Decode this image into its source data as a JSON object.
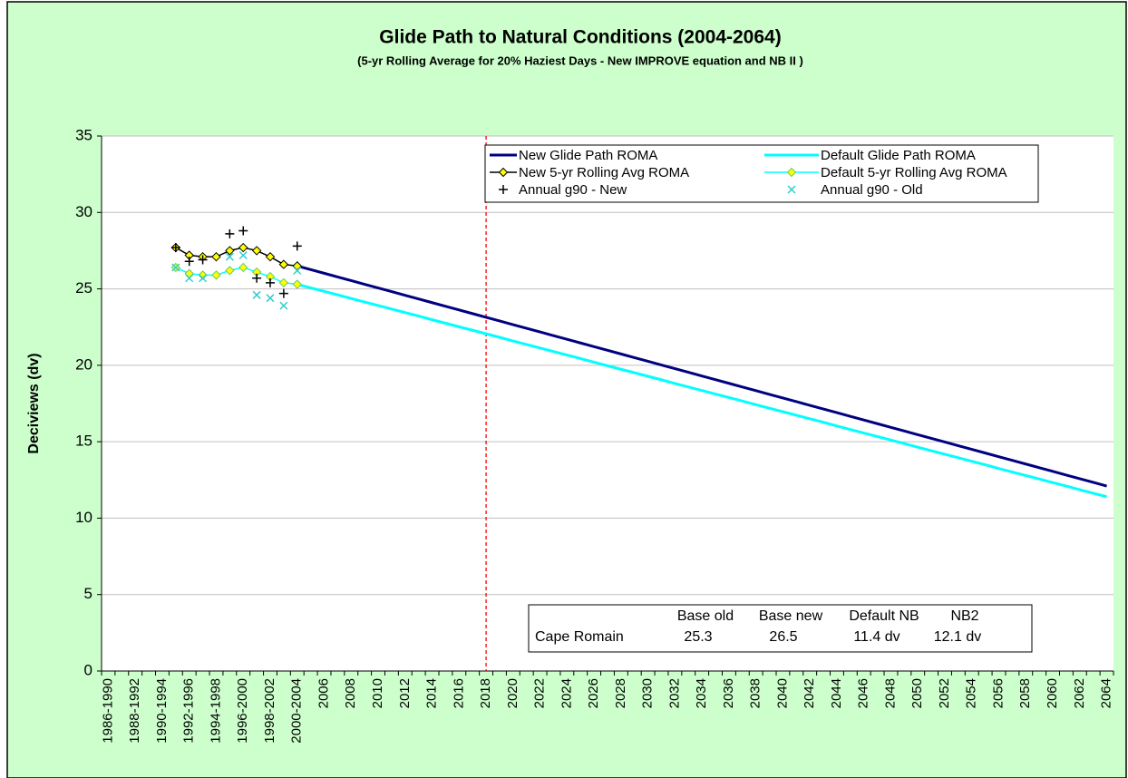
{
  "chart_data": {
    "type": "line",
    "title": "Glide Path to Natural Conditions  (2004-2064)",
    "subtitle": "(5-yr Rolling Average for 20% Haziest Days - New IMPROVE equation and NB II )",
    "y_label": "Deciviews (dv)",
    "categories": [
      "1986-1990",
      null,
      "1988-1992",
      null,
      "1990-1994",
      null,
      "1992-1996",
      null,
      "1994-1998",
      null,
      "1996-2000",
      null,
      "1998-2002",
      null,
      "2000-2004",
      null,
      "2006",
      null,
      "2008",
      null,
      "2010",
      null,
      "2012",
      null,
      "2014",
      null,
      "2016",
      null,
      "2018",
      null,
      "2020",
      null,
      "2022",
      null,
      "2024",
      null,
      "2026",
      null,
      "2028",
      null,
      "2030",
      null,
      "2032",
      null,
      "2034",
      null,
      "2036",
      null,
      "2038",
      null,
      "2040",
      null,
      "2042",
      null,
      "2044",
      null,
      "2046",
      null,
      "2048",
      null,
      "2050",
      null,
      "2052",
      null,
      "2054",
      null,
      "2056",
      null,
      "2058",
      null,
      "2060",
      null,
      "2062",
      null,
      "2064"
    ],
    "ylim": [
      0,
      35
    ],
    "yticks": [
      0,
      5,
      10,
      15,
      20,
      25,
      30,
      35
    ],
    "grid": true,
    "vline": {
      "category": "2018",
      "color": "#ff0000"
    },
    "series": [
      {
        "name": "New Glide Path ROMA",
        "color": "#000080",
        "style": "line",
        "values": [
          null,
          null,
          null,
          null,
          null,
          null,
          null,
          null,
          null,
          null,
          null,
          null,
          null,
          null,
          26.5,
          26.26,
          26.02,
          25.78,
          25.54,
          25.3,
          25.06,
          24.82,
          24.58,
          24.34,
          24.1,
          23.86,
          23.62,
          23.38,
          23.14,
          22.9,
          22.66,
          22.42,
          22.18,
          21.94,
          21.7,
          21.46,
          21.22,
          20.98,
          20.74,
          20.5,
          20.26,
          20.02,
          19.78,
          19.54,
          19.3,
          19.06,
          18.82,
          18.58,
          18.34,
          18.1,
          17.86,
          17.62,
          17.38,
          17.14,
          16.9,
          16.66,
          16.42,
          16.18,
          15.94,
          15.7,
          15.46,
          15.22,
          14.98,
          14.74,
          14.5,
          14.26,
          14.02,
          13.78,
          13.54,
          13.3,
          13.06,
          12.82,
          12.58,
          12.34,
          12.1
        ]
      },
      {
        "name": "Default Glide Path ROMA",
        "color": "#00ffff",
        "style": "line",
        "values": [
          null,
          null,
          null,
          null,
          null,
          null,
          null,
          null,
          null,
          null,
          null,
          null,
          null,
          null,
          25.3,
          25.07,
          24.84,
          24.61,
          24.37,
          24.14,
          23.91,
          23.68,
          23.45,
          23.22,
          22.98,
          22.75,
          22.52,
          22.29,
          22.06,
          21.83,
          21.59,
          21.36,
          21.13,
          20.9,
          20.67,
          20.44,
          20.2,
          19.97,
          19.74,
          19.51,
          19.28,
          19.05,
          18.81,
          18.58,
          18.35,
          18.12,
          17.89,
          17.66,
          17.42,
          17.19,
          16.96,
          16.73,
          16.5,
          16.27,
          16.03,
          15.8,
          15.57,
          15.34,
          15.11,
          14.88,
          14.64,
          14.41,
          14.18,
          13.95,
          13.72,
          13.49,
          13.25,
          13.02,
          12.79,
          12.56,
          12.33,
          12.1,
          11.86,
          11.63,
          11.4
        ]
      },
      {
        "name": "New 5-yr Rolling Avg ROMA",
        "color": "#000000",
        "marker_fill": "#ffff00",
        "style": "line-diamond",
        "values": [
          null,
          null,
          null,
          null,
          null,
          27.7,
          27.2,
          27.1,
          27.1,
          27.5,
          27.7,
          27.5,
          27.1,
          26.6,
          26.5,
          null,
          null,
          null,
          null,
          null,
          null,
          null,
          null,
          null,
          null,
          null,
          null,
          null,
          null,
          null,
          null,
          null,
          null,
          null,
          null,
          null,
          null,
          null,
          null,
          null,
          null,
          null,
          null,
          null,
          null,
          null,
          null,
          null,
          null,
          null,
          null,
          null,
          null,
          null,
          null,
          null,
          null,
          null,
          null,
          null,
          null,
          null,
          null,
          null,
          null,
          null,
          null,
          null,
          null,
          null,
          null,
          null,
          null,
          null,
          null
        ]
      },
      {
        "name": "Default 5-yr Rolling Avg ROMA",
        "color": "#00ffff",
        "marker_fill": "#ffff00",
        "style": "line-diamond",
        "values": [
          null,
          null,
          null,
          null,
          null,
          26.4,
          26.0,
          25.9,
          25.9,
          26.2,
          26.4,
          26.1,
          25.8,
          25.4,
          25.3,
          null,
          null,
          null,
          null,
          null,
          null,
          null,
          null,
          null,
          null,
          null,
          null,
          null,
          null,
          null,
          null,
          null,
          null,
          null,
          null,
          null,
          null,
          null,
          null,
          null,
          null,
          null,
          null,
          null,
          null,
          null,
          null,
          null,
          null,
          null,
          null,
          null,
          null,
          null,
          null,
          null,
          null,
          null,
          null,
          null,
          null,
          null,
          null,
          null,
          null,
          null,
          null,
          null,
          null,
          null,
          null,
          null,
          null,
          null,
          null
        ]
      },
      {
        "name": "Annual g90 - New",
        "color": "#000000",
        "style": "plus",
        "values": [
          null,
          null,
          null,
          null,
          null,
          27.7,
          26.8,
          26.9,
          null,
          28.6,
          28.8,
          25.7,
          25.4,
          24.7,
          27.8,
          null,
          null,
          null,
          null,
          null,
          null,
          null,
          null,
          null,
          null,
          null,
          null,
          null,
          null,
          null,
          null,
          null,
          null,
          null,
          null,
          null,
          null,
          null,
          null,
          null,
          null,
          null,
          null,
          null,
          null,
          null,
          null,
          null,
          null,
          null,
          null,
          null,
          null,
          null,
          null,
          null,
          null,
          null,
          null,
          null,
          null,
          null,
          null,
          null,
          null,
          null,
          null,
          null,
          null,
          null,
          null,
          null,
          null,
          null,
          null
        ]
      },
      {
        "name": "Annual g90 - Old",
        "color": "#33cccc",
        "style": "cross",
        "values": [
          null,
          null,
          null,
          null,
          null,
          26.4,
          25.7,
          25.7,
          null,
          27.1,
          27.2,
          24.6,
          24.4,
          23.9,
          26.2,
          null,
          null,
          null,
          null,
          null,
          null,
          null,
          null,
          null,
          null,
          null,
          null,
          null,
          null,
          null,
          null,
          null,
          null,
          null,
          null,
          null,
          null,
          null,
          null,
          null,
          null,
          null,
          null,
          null,
          null,
          null,
          null,
          null,
          null,
          null,
          null,
          null,
          null,
          null,
          null,
          null,
          null,
          null,
          null,
          null,
          null,
          null,
          null,
          null,
          null,
          null,
          null,
          null,
          null,
          null,
          null,
          null,
          null,
          null,
          null
        ]
      }
    ],
    "table": {
      "header": [
        "Base old",
        "Base new",
        "Default NB",
        "NB2"
      ],
      "rows": [
        [
          "Cape Romain",
          "25.3",
          "26.5",
          "11.4 dv",
          "12.1 dv"
        ]
      ]
    }
  }
}
